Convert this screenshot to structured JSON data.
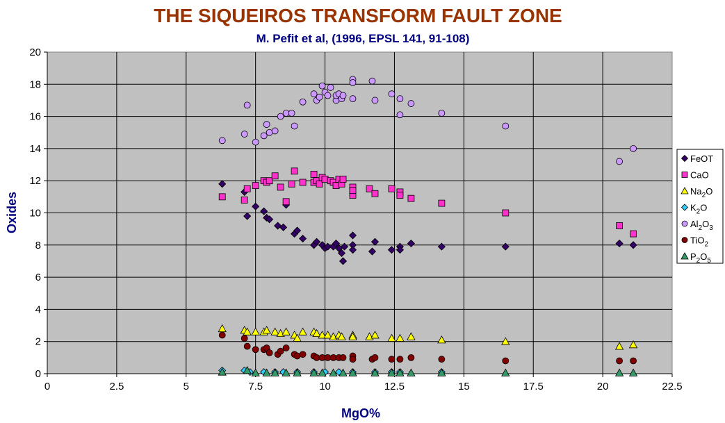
{
  "chart_data": {
    "type": "scatter",
    "title": "THE SIQUEIROS TRANSFORM FAULT ZONE",
    "subtitle": "M. Pefit et al, (1996, EPSL 141, 91-108)",
    "xlabel": "MgO%",
    "ylabel": "Oxides",
    "xlim": [
      0,
      22.5
    ],
    "ylim": [
      0,
      20
    ],
    "x_ticks": [
      "0",
      "2.5",
      "5",
      "7.5",
      "10",
      "12.5",
      "15",
      "17.5",
      "20",
      "22.5"
    ],
    "y_ticks": [
      "0",
      "2",
      "4",
      "6",
      "8",
      "10",
      "12",
      "14",
      "16",
      "18",
      "20"
    ],
    "grid": true,
    "plot_background": "#c0c0c0",
    "legend_position": "right",
    "series": [
      {
        "name": "FeOT",
        "legend_base": "FeOT",
        "legend_sub": "",
        "legend_tail": "",
        "marker": "diamond",
        "color": "#330066",
        "points": [
          [
            6.3,
            11.8
          ],
          [
            7.1,
            11.3
          ],
          [
            7.2,
            9.8
          ],
          [
            7.5,
            10.4
          ],
          [
            7.8,
            10.1
          ],
          [
            7.9,
            9.7
          ],
          [
            8.0,
            9.6
          ],
          [
            8.3,
            9.2
          ],
          [
            8.5,
            9.1
          ],
          [
            8.6,
            10.5
          ],
          [
            8.9,
            8.7
          ],
          [
            9.0,
            8.9
          ],
          [
            9.2,
            8.4
          ],
          [
            9.6,
            8.0
          ],
          [
            9.7,
            8.2
          ],
          [
            9.9,
            8.0
          ],
          [
            10.0,
            7.8
          ],
          [
            10.1,
            7.9
          ],
          [
            10.3,
            7.9
          ],
          [
            10.4,
            8.1
          ],
          [
            10.5,
            7.8
          ],
          [
            10.6,
            7.5
          ],
          [
            10.7,
            7.9
          ],
          [
            10.65,
            7.0
          ],
          [
            11.0,
            8.0
          ],
          [
            11.0,
            8.6
          ],
          [
            11.0,
            7.7
          ],
          [
            11.7,
            7.6
          ],
          [
            11.8,
            8.2
          ],
          [
            12.4,
            7.7
          ],
          [
            12.7,
            7.9
          ],
          [
            12.7,
            7.7
          ],
          [
            13.1,
            8.1
          ],
          [
            14.2,
            7.9
          ],
          [
            16.5,
            7.9
          ],
          [
            20.6,
            8.1
          ],
          [
            21.1,
            8.0
          ]
        ]
      },
      {
        "name": "CaO",
        "legend_base": "CaO",
        "legend_sub": "",
        "legend_tail": "",
        "marker": "square",
        "color": "#ff33cc",
        "points": [
          [
            6.3,
            11.0
          ],
          [
            7.1,
            10.8
          ],
          [
            7.2,
            11.5
          ],
          [
            7.5,
            11.7
          ],
          [
            7.8,
            12.0
          ],
          [
            7.9,
            11.9
          ],
          [
            8.0,
            12.0
          ],
          [
            8.2,
            12.3
          ],
          [
            8.4,
            11.6
          ],
          [
            8.6,
            10.7
          ],
          [
            8.8,
            11.8
          ],
          [
            8.9,
            12.6
          ],
          [
            9.2,
            11.9
          ],
          [
            9.6,
            11.9
          ],
          [
            9.6,
            12.4
          ],
          [
            9.7,
            12.0
          ],
          [
            9.8,
            11.8
          ],
          [
            9.9,
            12.2
          ],
          [
            10.0,
            12.1
          ],
          [
            10.2,
            12.0
          ],
          [
            10.3,
            11.9
          ],
          [
            10.4,
            11.7
          ],
          [
            10.5,
            12.1
          ],
          [
            10.6,
            11.8
          ],
          [
            10.65,
            12.1
          ],
          [
            11.0,
            11.6
          ],
          [
            11.0,
            11.1
          ],
          [
            11.0,
            11.4
          ],
          [
            11.6,
            11.5
          ],
          [
            11.8,
            11.2
          ],
          [
            12.4,
            11.5
          ],
          [
            12.7,
            11.3
          ],
          [
            12.7,
            11.1
          ],
          [
            13.1,
            10.9
          ],
          [
            14.2,
            10.6
          ],
          [
            16.5,
            10.0
          ],
          [
            20.6,
            9.2
          ],
          [
            21.1,
            8.7
          ]
        ]
      },
      {
        "name": "Na2O",
        "legend_base": "Na",
        "legend_sub": "2",
        "legend_tail": "O",
        "marker": "triangle",
        "color": "#ffff00",
        "points": [
          [
            6.3,
            2.8
          ],
          [
            7.1,
            2.7
          ],
          [
            7.2,
            2.6
          ],
          [
            7.5,
            2.6
          ],
          [
            7.8,
            2.6
          ],
          [
            7.9,
            2.7
          ],
          [
            8.2,
            2.6
          ],
          [
            8.4,
            2.5
          ],
          [
            8.6,
            2.6
          ],
          [
            8.9,
            2.4
          ],
          [
            9.0,
            2.2
          ],
          [
            9.2,
            2.6
          ],
          [
            9.6,
            2.6
          ],
          [
            9.7,
            2.5
          ],
          [
            9.9,
            2.4
          ],
          [
            10.1,
            2.4
          ],
          [
            10.3,
            2.3
          ],
          [
            10.5,
            2.4
          ],
          [
            10.6,
            2.3
          ],
          [
            11.0,
            2.4
          ],
          [
            11.0,
            2.3
          ],
          [
            11.6,
            2.3
          ],
          [
            11.8,
            2.4
          ],
          [
            12.4,
            2.2
          ],
          [
            12.7,
            2.2
          ],
          [
            13.1,
            2.3
          ],
          [
            14.2,
            2.1
          ],
          [
            16.5,
            2.0
          ],
          [
            20.6,
            1.7
          ],
          [
            21.1,
            1.8
          ]
        ]
      },
      {
        "name": "K2O",
        "legend_base": "K",
        "legend_sub": "2",
        "legend_tail": "O",
        "marker": "diamond",
        "color": "#33ccff",
        "points": [
          [
            6.3,
            0.2
          ],
          [
            7.1,
            0.2
          ],
          [
            7.3,
            0.1
          ],
          [
            7.8,
            0.1
          ],
          [
            8.2,
            0.1
          ],
          [
            8.5,
            0.1
          ],
          [
            9.0,
            0.1
          ],
          [
            9.6,
            0.1
          ],
          [
            10.0,
            0.1
          ],
          [
            10.5,
            0.1
          ],
          [
            11.0,
            0.1
          ],
          [
            11.8,
            0.1
          ],
          [
            12.4,
            0.1
          ],
          [
            12.7,
            0.1
          ],
          [
            14.2,
            0.1
          ]
        ]
      },
      {
        "name": "Al2O3",
        "legend_base": "Al",
        "legend_sub": "2",
        "legend_tail": "O3",
        "marker": "circle",
        "color": "#cc99ff",
        "points": [
          [
            6.3,
            14.5
          ],
          [
            7.1,
            14.9
          ],
          [
            7.2,
            16.7
          ],
          [
            7.5,
            14.4
          ],
          [
            7.8,
            14.8
          ],
          [
            7.9,
            15.5
          ],
          [
            8.0,
            15.0
          ],
          [
            8.2,
            15.1
          ],
          [
            8.4,
            16.0
          ],
          [
            8.6,
            16.2
          ],
          [
            8.8,
            16.2
          ],
          [
            8.9,
            15.4
          ],
          [
            9.2,
            16.9
          ],
          [
            9.6,
            17.4
          ],
          [
            9.7,
            17.0
          ],
          [
            9.8,
            17.2
          ],
          [
            9.9,
            17.9
          ],
          [
            10.0,
            17.5
          ],
          [
            10.1,
            17.3
          ],
          [
            10.2,
            17.8
          ],
          [
            10.4,
            17.0
          ],
          [
            10.4,
            17.3
          ],
          [
            10.5,
            17.4
          ],
          [
            10.6,
            17.1
          ],
          [
            10.65,
            17.3
          ],
          [
            11.0,
            17.1
          ],
          [
            11.0,
            18.3
          ],
          [
            11.0,
            18.1
          ],
          [
            11.7,
            18.2
          ],
          [
            11.8,
            17.0
          ],
          [
            12.4,
            17.4
          ],
          [
            12.7,
            17.1
          ],
          [
            12.7,
            16.1
          ],
          [
            13.1,
            16.8
          ],
          [
            14.2,
            16.2
          ],
          [
            16.5,
            15.4
          ],
          [
            20.6,
            13.2
          ],
          [
            21.1,
            14.0
          ]
        ]
      },
      {
        "name": "TiO2",
        "legend_base": "TiO",
        "legend_sub": "2",
        "legend_tail": "",
        "marker": "circle",
        "color": "#800000",
        "points": [
          [
            6.3,
            2.4
          ],
          [
            7.1,
            2.2
          ],
          [
            7.2,
            1.7
          ],
          [
            7.5,
            1.5
          ],
          [
            7.8,
            1.5
          ],
          [
            7.9,
            1.6
          ],
          [
            8.0,
            1.3
          ],
          [
            8.3,
            1.2
          ],
          [
            8.4,
            1.4
          ],
          [
            8.6,
            1.6
          ],
          [
            8.9,
            1.2
          ],
          [
            9.0,
            1.1
          ],
          [
            9.2,
            1.2
          ],
          [
            9.6,
            1.1
          ],
          [
            9.7,
            1.0
          ],
          [
            9.9,
            1.0
          ],
          [
            10.1,
            1.0
          ],
          [
            10.3,
            1.0
          ],
          [
            10.5,
            1.0
          ],
          [
            10.65,
            1.0
          ],
          [
            11.0,
            1.1
          ],
          [
            11.0,
            0.9
          ],
          [
            11.7,
            0.9
          ],
          [
            11.8,
            1.0
          ],
          [
            12.4,
            0.9
          ],
          [
            12.7,
            0.9
          ],
          [
            13.1,
            1.0
          ],
          [
            14.2,
            0.9
          ],
          [
            16.5,
            0.8
          ],
          [
            20.6,
            0.8
          ],
          [
            21.1,
            0.8
          ]
        ]
      },
      {
        "name": "P2O5",
        "legend_base": "P",
        "legend_sub": "2",
        "legend_tail": "O5",
        "marker": "triangle",
        "color": "#339966",
        "points": [
          [
            6.3,
            0.1
          ],
          [
            7.2,
            0.2
          ],
          [
            7.5,
            0.05
          ],
          [
            7.9,
            0.05
          ],
          [
            8.2,
            0.05
          ],
          [
            8.6,
            0.05
          ],
          [
            9.0,
            0.05
          ],
          [
            9.6,
            0.05
          ],
          [
            9.9,
            0.05
          ],
          [
            10.3,
            0.05
          ],
          [
            10.65,
            0.05
          ],
          [
            11.0,
            0.05
          ],
          [
            11.8,
            0.05
          ],
          [
            12.4,
            0.05
          ],
          [
            12.7,
            0.05
          ],
          [
            13.1,
            0.05
          ],
          [
            14.2,
            0.05
          ],
          [
            16.5,
            0.05
          ],
          [
            20.6,
            0.05
          ],
          [
            21.1,
            0.05
          ]
        ]
      }
    ]
  }
}
